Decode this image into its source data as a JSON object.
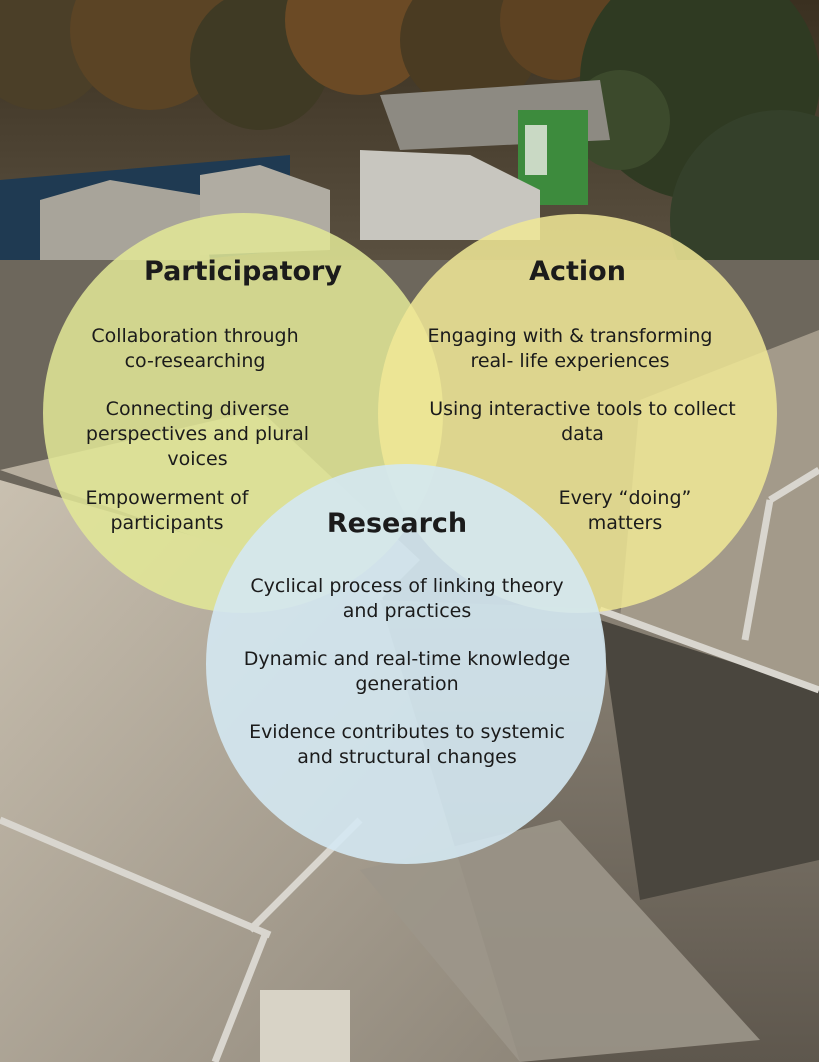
{
  "participatory": {
    "title": "Participatory",
    "items": [
      [
        "Collaboration through",
        "co-researching"
      ],
      [
        "Connecting diverse",
        "perspectives and plural",
        "voices"
      ],
      [
        "Empowerment of",
        "participants"
      ]
    ]
  },
  "action": {
    "title": "Action",
    "items": [
      [
        "Engaging with & transforming",
        "real- life experiences"
      ],
      [
        "Using interactive tools to collect",
        "data"
      ],
      [
        "Every “doing”",
        "matters"
      ]
    ]
  },
  "research": {
    "title": "Research",
    "items": [
      [
        "Cyclical process of linking theory",
        "and practices"
      ],
      [
        "Dynamic and real-time knowledge",
        "generation"
      ],
      [
        "Evidence contributes to systemic",
        "and structural changes"
      ]
    ]
  },
  "colors": {
    "participatory_fill": "#e2e896",
    "action_fill": "#f0e896",
    "research_fill": "#d4e8f2"
  }
}
